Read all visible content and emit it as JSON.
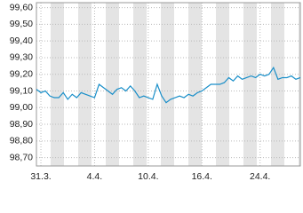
{
  "chart_data": {
    "type": "line",
    "categories": [
      null,
      "31.3.",
      null,
      null,
      null,
      null,
      null,
      null,
      null,
      null,
      null,
      null,
      null,
      "4.4.",
      null,
      null,
      null,
      null,
      null,
      null,
      null,
      null,
      null,
      null,
      null,
      "10.4.",
      null,
      null,
      null,
      null,
      null,
      null,
      null,
      null,
      null,
      null,
      null,
      "16.4.",
      null,
      null,
      null,
      null,
      null,
      null,
      null,
      null,
      null,
      null,
      null,
      null,
      "24.4.",
      null,
      null,
      null,
      null,
      null,
      null,
      null,
      null,
      null
    ],
    "series": [
      {
        "color": "#1a8fc9",
        "values": [
          99.11,
          99.09,
          99.1,
          99.07,
          99.06,
          99.06,
          99.09,
          99.05,
          99.08,
          99.06,
          99.09,
          99.08,
          99.07,
          99.06,
          99.14,
          99.12,
          99.1,
          99.08,
          99.11,
          99.12,
          99.1,
          99.13,
          99.1,
          99.06,
          99.07,
          99.06,
          99.05,
          99.14,
          99.07,
          99.03,
          99.05,
          99.06,
          99.07,
          99.06,
          99.08,
          99.07,
          99.09,
          99.1,
          99.12,
          99.14,
          99.14,
          99.14,
          99.15,
          99.18,
          99.16,
          99.19,
          99.17,
          99.18,
          99.19,
          99.18,
          99.2,
          99.19,
          99.2,
          99.24,
          99.17,
          99.18,
          99.18,
          99.19,
          99.17,
          99.18
        ]
      }
    ],
    "ylim": [
      98.65,
      99.63
    ],
    "yticks": [
      {
        "value": 98.7,
        "label": "98,70"
      },
      {
        "value": 98.8,
        "label": "98,80"
      },
      {
        "value": 98.9,
        "label": "98,90"
      },
      {
        "value": 99.0,
        "label": "99,00"
      },
      {
        "value": 99.1,
        "label": "99,10"
      },
      {
        "value": 99.2,
        "label": "99,20"
      },
      {
        "value": 99.3,
        "label": "99,30"
      },
      {
        "value": 99.4,
        "label": "99,40"
      },
      {
        "value": 99.5,
        "label": "99,50"
      },
      {
        "value": 99.6,
        "label": "99,60"
      }
    ],
    "grid": true
  }
}
